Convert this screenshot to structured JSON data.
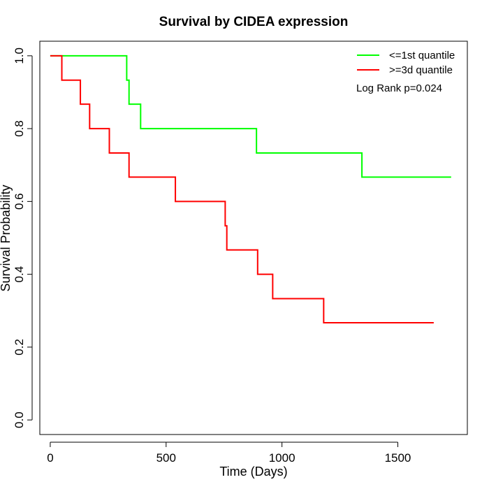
{
  "chart_data": {
    "type": "line",
    "title": "Survival by CIDEA expression",
    "xlabel": "Time (Days)",
    "ylabel": "Survival Probability",
    "xlim": [
      -45,
      1800
    ],
    "ylim": [
      -0.04,
      1.04
    ],
    "xticks": [
      0,
      500,
      1000,
      1500
    ],
    "xtick_labels": [
      "0",
      "500",
      "1000",
      "1500"
    ],
    "yticks": [
      0.0,
      0.2,
      0.4,
      0.6,
      0.8,
      1.0
    ],
    "ytick_labels": [
      "0.0",
      "0.2",
      "0.4",
      "0.6",
      "0.8",
      "1.0"
    ],
    "grid": false,
    "legend_position": "top-right",
    "annotation": "Log Rank p=0.024",
    "series": [
      {
        "name": "<=1st quantile",
        "color": "#00ff00",
        "step": true,
        "x": [
          0,
          330,
          340,
          390,
          890,
          1345,
          1730
        ],
        "y": [
          1.0,
          0.933,
          0.867,
          0.8,
          0.733,
          0.667,
          0.667
        ]
      },
      {
        "name": ">=3d quantile",
        "color": "#ff0000",
        "step": true,
        "x": [
          0,
          50,
          130,
          170,
          255,
          340,
          540,
          755,
          762,
          895,
          960,
          1180,
          1655
        ],
        "y": [
          1.0,
          0.933,
          0.867,
          0.8,
          0.733,
          0.667,
          0.6,
          0.533,
          0.467,
          0.4,
          0.333,
          0.267,
          0.267
        ]
      }
    ]
  }
}
